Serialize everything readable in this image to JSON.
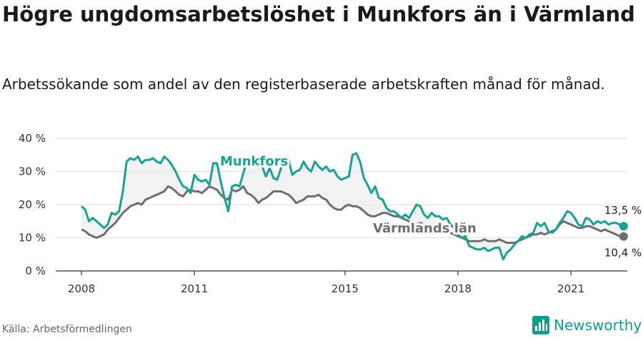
{
  "header": {
    "title": "Högre ungdomsarbetslöshet i Munkfors än i Värmland",
    "subtitle": "Arbetssökande som andel av den registerbaserade arbetskraften månad för månad."
  },
  "footer": {
    "source": "Källa: Arbetsförmedlingen",
    "brand": "Newsworthy"
  },
  "colors": {
    "munkfors": "#14a394",
    "varmland": "#6f6d72",
    "band": "#ececec",
    "grid": "#dddddd"
  },
  "chart_data": {
    "type": "line",
    "title": "Högre ungdomsarbetslöshet i Munkfors än i Värmland",
    "subtitle": "Arbetssökande som andel av den registerbaserade arbetskraften månad för månad.",
    "xlim": [
      2008.0,
      2022.6
    ],
    "ylim": [
      0,
      40
    ],
    "y_ticks": [
      0,
      10,
      20,
      30,
      40
    ],
    "y_tick_labels": [
      "0 %",
      "10 %",
      "20 %",
      "30 %",
      "40 %"
    ],
    "x_ticks": [
      2008,
      2011,
      2015,
      2018,
      2021
    ],
    "x_tick_labels": [
      "2008",
      "2011",
      "2015",
      "2018",
      "2021"
    ],
    "grid": true,
    "series": [
      {
        "name": "Munkfors",
        "end_label": "13,5 %",
        "x": [
          2008.0,
          2008.1,
          2008.2,
          2008.3,
          2008.4,
          2008.5,
          2008.6,
          2008.7,
          2008.8,
          2008.9,
          2009.0,
          2009.1,
          2009.2,
          2009.3,
          2009.4,
          2009.5,
          2009.6,
          2009.7,
          2009.8,
          2009.9,
          2010.0,
          2010.1,
          2010.2,
          2010.3,
          2010.4,
          2010.5,
          2010.6,
          2010.7,
          2010.8,
          2010.9,
          2011.0,
          2011.1,
          2011.2,
          2011.3,
          2011.4,
          2011.5,
          2011.6,
          2011.7,
          2011.8,
          2011.9,
          2012.0,
          2012.1,
          2012.2,
          2012.3,
          2012.4,
          2012.5,
          2012.6,
          2012.7,
          2012.8,
          2012.9,
          2013.0,
          2013.1,
          2013.2,
          2013.3,
          2013.4,
          2013.5,
          2013.6,
          2013.7,
          2013.8,
          2013.9,
          2014.0,
          2014.1,
          2014.2,
          2014.3,
          2014.4,
          2014.5,
          2014.6,
          2014.7,
          2014.8,
          2014.9,
          2015.0,
          2015.1,
          2015.2,
          2015.3,
          2015.4,
          2015.5,
          2015.6,
          2015.7,
          2015.8,
          2015.9,
          2016.0,
          2016.1,
          2016.2,
          2016.3,
          2016.4,
          2016.5,
          2016.6,
          2016.7,
          2016.8,
          2016.9,
          2017.0,
          2017.1,
          2017.2,
          2017.3,
          2017.4,
          2017.5,
          2017.6,
          2017.7,
          2017.8,
          2017.9,
          2018.0,
          2018.1,
          2018.2,
          2018.3,
          2018.4,
          2018.5,
          2018.6,
          2018.7,
          2018.8,
          2018.9,
          2019.0,
          2019.1,
          2019.2,
          2019.3,
          2019.4,
          2019.5,
          2019.6,
          2019.7,
          2019.8,
          2019.9,
          2020.0,
          2020.1,
          2020.2,
          2020.3,
          2020.4,
          2020.5,
          2020.6,
          2020.7,
          2020.8,
          2020.9,
          2021.0,
          2021.1,
          2021.2,
          2021.3,
          2021.4,
          2021.5,
          2021.6,
          2021.7,
          2021.8,
          2021.9,
          2022.0,
          2022.1,
          2022.2,
          2022.3,
          2022.4
        ],
        "values": [
          19.5,
          18.5,
          15.0,
          16.0,
          15.0,
          14.0,
          13.0,
          14.0,
          17.5,
          17.0,
          18.0,
          24.0,
          33.0,
          34.0,
          33.5,
          34.5,
          32.5,
          33.5,
          33.5,
          34.0,
          33.0,
          32.5,
          34.5,
          33.5,
          32.0,
          30.0,
          27.5,
          25.5,
          25.0,
          23.5,
          29.0,
          27.5,
          27.0,
          27.5,
          26.0,
          32.5,
          32.5,
          27.0,
          22.0,
          18.0,
          25.5,
          26.0,
          25.5,
          29.5,
          33.5,
          32.5,
          33.0,
          32.5,
          31.5,
          28.5,
          31.0,
          28.0,
          27.5,
          31.0,
          34.0,
          33.5,
          29.0,
          30.0,
          30.5,
          33.0,
          31.0,
          30.0,
          33.0,
          31.5,
          30.5,
          31.5,
          30.0,
          30.5,
          28.5,
          27.5,
          28.0,
          28.5,
          35.0,
          35.5,
          33.0,
          28.0,
          26.0,
          23.5,
          25.5,
          22.0,
          21.5,
          19.0,
          18.0,
          18.0,
          17.0,
          16.0,
          17.0,
          16.0,
          18.0,
          20.0,
          19.5,
          17.0,
          16.0,
          17.5,
          16.5,
          16.5,
          15.5,
          16.0,
          14.0,
          13.0,
          11.0,
          10.0,
          10.5,
          7.5,
          7.0,
          6.5,
          6.5,
          7.0,
          6.0,
          6.5,
          7.0,
          7.0,
          3.5,
          5.5,
          6.5,
          8.0,
          9.0,
          10.5,
          10.0,
          11.0,
          11.5,
          14.5,
          13.5,
          14.5,
          12.0,
          11.5,
          12.5,
          14.5,
          16.0,
          18.0,
          17.5,
          16.0,
          14.0,
          13.5,
          16.0,
          15.5,
          14.0,
          15.0,
          14.5,
          15.0,
          14.0,
          14.5,
          14.5,
          14.0,
          13.5
        ]
      },
      {
        "name": "Värmlands län",
        "end_label": "10,4 %",
        "x": [
          2008.0,
          2008.1,
          2008.2,
          2008.3,
          2008.4,
          2008.5,
          2008.6,
          2008.7,
          2008.8,
          2008.9,
          2009.0,
          2009.1,
          2009.2,
          2009.3,
          2009.4,
          2009.5,
          2009.6,
          2009.7,
          2009.8,
          2009.9,
          2010.0,
          2010.1,
          2010.2,
          2010.3,
          2010.4,
          2010.5,
          2010.6,
          2010.7,
          2010.8,
          2010.9,
          2011.0,
          2011.1,
          2011.2,
          2011.3,
          2011.4,
          2011.5,
          2011.6,
          2011.7,
          2011.8,
          2011.9,
          2012.0,
          2012.1,
          2012.2,
          2012.3,
          2012.4,
          2012.5,
          2012.6,
          2012.7,
          2012.8,
          2012.9,
          2013.0,
          2013.1,
          2013.2,
          2013.3,
          2013.4,
          2013.5,
          2013.6,
          2013.7,
          2013.8,
          2013.9,
          2014.0,
          2014.1,
          2014.2,
          2014.3,
          2014.4,
          2014.5,
          2014.6,
          2014.7,
          2014.8,
          2014.9,
          2015.0,
          2015.1,
          2015.2,
          2015.3,
          2015.4,
          2015.5,
          2015.6,
          2015.7,
          2015.8,
          2015.9,
          2016.0,
          2016.1,
          2016.2,
          2016.3,
          2016.4,
          2016.5,
          2016.6,
          2016.7,
          2016.8,
          2016.9,
          2017.0,
          2017.1,
          2017.2,
          2017.3,
          2017.4,
          2017.5,
          2017.6,
          2017.7,
          2017.8,
          2017.9,
          2018.0,
          2018.1,
          2018.2,
          2018.3,
          2018.4,
          2018.5,
          2018.6,
          2018.7,
          2018.8,
          2018.9,
          2019.0,
          2019.1,
          2019.2,
          2019.3,
          2019.4,
          2019.5,
          2019.6,
          2019.7,
          2019.8,
          2019.9,
          2020.0,
          2020.1,
          2020.2,
          2020.3,
          2020.4,
          2020.5,
          2020.6,
          2020.7,
          2020.8,
          2020.9,
          2021.0,
          2021.1,
          2021.2,
          2021.3,
          2021.4,
          2021.5,
          2021.6,
          2021.7,
          2021.8,
          2021.9,
          2022.0,
          2022.1,
          2022.2,
          2022.3,
          2022.4
        ],
        "values": [
          12.5,
          12.0,
          11.0,
          10.5,
          10.0,
          10.5,
          11.0,
          12.5,
          13.5,
          14.5,
          16.0,
          17.5,
          18.5,
          19.5,
          20.0,
          20.5,
          20.0,
          21.5,
          22.0,
          22.5,
          23.0,
          23.5,
          24.0,
          25.5,
          25.0,
          24.0,
          23.0,
          22.5,
          24.0,
          24.5,
          24.0,
          24.0,
          23.5,
          24.5,
          25.5,
          25.0,
          24.5,
          23.0,
          22.0,
          21.5,
          24.5,
          24.0,
          24.5,
          25.5,
          23.5,
          23.0,
          22.0,
          20.5,
          21.5,
          22.0,
          23.0,
          24.0,
          24.0,
          24.0,
          23.5,
          23.0,
          22.0,
          20.5,
          21.0,
          21.5,
          22.5,
          22.5,
          22.5,
          23.0,
          22.0,
          21.5,
          20.0,
          19.0,
          18.5,
          18.5,
          19.5,
          20.0,
          19.5,
          19.5,
          19.0,
          18.0,
          17.0,
          16.5,
          16.5,
          17.0,
          17.5,
          17.5,
          17.0,
          16.5,
          16.5,
          16.0,
          15.5,
          15.0,
          14.5,
          14.0,
          14.5,
          14.0,
          13.5,
          13.5,
          13.0,
          12.5,
          12.5,
          12.0,
          11.5,
          11.0,
          10.5,
          10.0,
          9.5,
          9.0,
          9.0,
          9.0,
          9.0,
          9.5,
          9.0,
          9.0,
          9.0,
          9.5,
          9.0,
          8.5,
          8.5,
          8.5,
          9.0,
          9.5,
          10.0,
          10.5,
          11.0,
          11.0,
          11.5,
          11.0,
          11.5,
          12.0,
          12.5,
          14.0,
          15.0,
          14.5,
          14.0,
          13.5,
          13.0,
          13.0,
          13.5,
          13.5,
          13.0,
          12.5,
          12.0,
          12.5,
          12.0,
          11.5,
          11.0,
          10.5,
          10.4
        ]
      }
    ]
  }
}
